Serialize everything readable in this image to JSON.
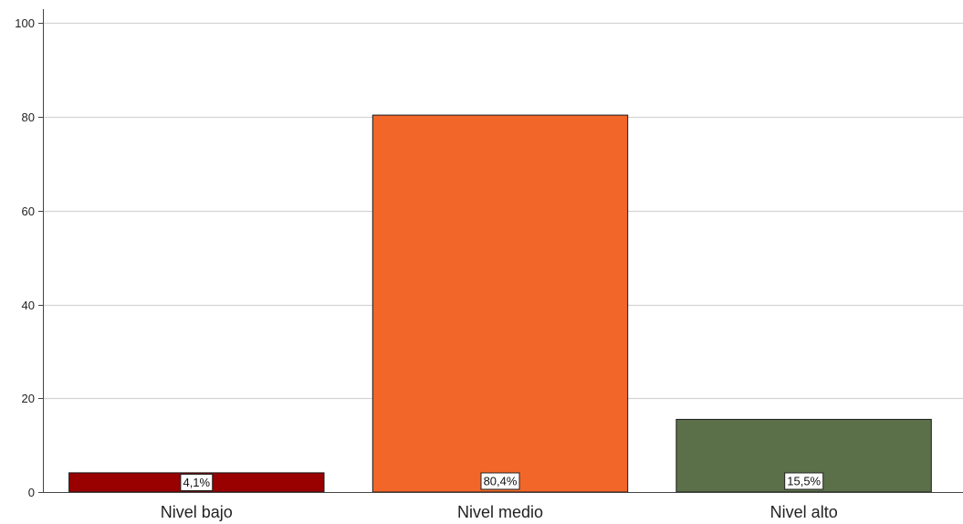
{
  "chart_data": {
    "type": "bar",
    "title": "",
    "xlabel": "",
    "ylabel": "",
    "categories": [
      "Nivel bajo",
      "Nivel medio",
      "Nivel alto"
    ],
    "values": [
      4.1,
      80.4,
      15.5
    ],
    "data_labels": [
      "4,1%",
      "80,4%",
      "15,5%"
    ],
    "colors": [
      "#990000",
      "#f26729",
      "#5b7049"
    ],
    "ylim": [
      0,
      103
    ],
    "yticks": [
      0,
      20,
      40,
      60,
      80,
      100
    ],
    "grid": true,
    "legend": "none"
  }
}
